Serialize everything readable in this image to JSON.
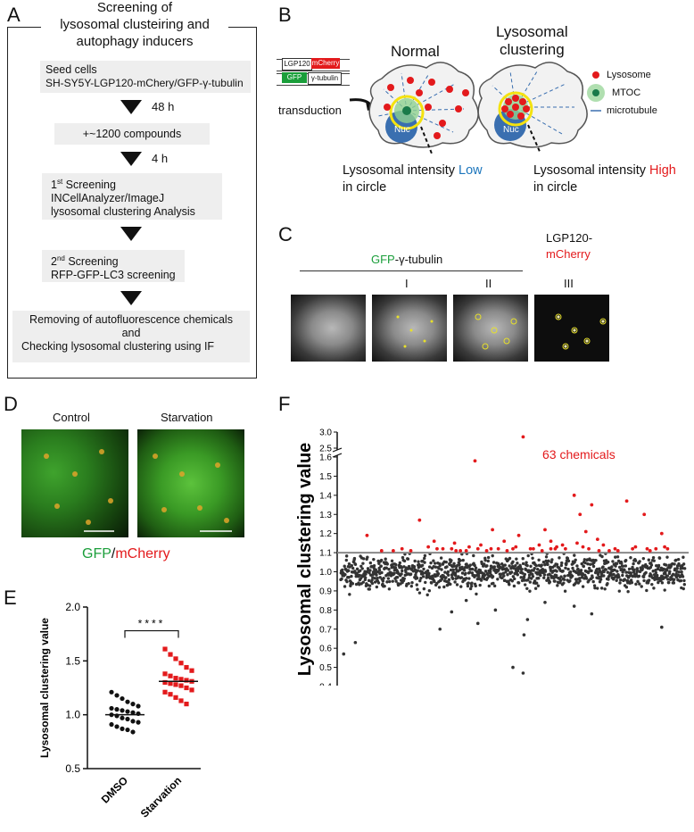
{
  "panels": {
    "a": "A",
    "b": "B",
    "c": "C",
    "d": "D",
    "e": "E",
    "f": "F"
  },
  "panel_a": {
    "title_lines": [
      "Screening of",
      "lysosomal clusteiring  and",
      "autophagy inducers"
    ],
    "step1": [
      "Seed cells",
      "SH-SY5Y-LGP120-mChery/GFP-γ-tubulin"
    ],
    "time1": "48 h",
    "step2": "+~1200 compounds",
    "time2": "4 h",
    "step3": {
      "sup": "st",
      "pre": "1",
      "line1": " Screening",
      "line2": "INCellAnalyzer/ImageJ",
      "line3": "lysosomal clustering Analysis"
    },
    "step4": {
      "pre": "2",
      "sup": "nd",
      "line1": " Screening",
      "line2": "RFP-GFP-LC3 screening"
    },
    "step5": [
      "Removing of autofluorescence chemicals",
      "and",
      "Checking lysosomal clustering  using  IF"
    ]
  },
  "panel_b": {
    "construct1": [
      "LGP120",
      "mCherry"
    ],
    "construct2": [
      "GFP",
      "γ-tubulin"
    ],
    "transduction": "transduction",
    "normal": "Normal",
    "clustering": [
      "Lysosomal",
      "clustering"
    ],
    "nuc": "Nuc",
    "legend": [
      "Lysosome",
      "MTOC",
      "microtubule"
    ],
    "intensity_low": {
      "pre": "Lysosomal intensity ",
      "word": "Low",
      "post": "in circle"
    },
    "intensity_high": {
      "pre": "Lysosomal intensity ",
      "word": "High",
      "post": "in circle"
    },
    "colors": {
      "low": "#1b75bc",
      "high": "#e31a1c",
      "green": "#1a9e3a"
    }
  },
  "panel_c": {
    "header_gfp": "GFP",
    "header_rest": "-γ-tubulin",
    "lgp_line1": "LGP120-",
    "lgp_line2": "mCherry",
    "cols": [
      "I",
      "II",
      "III"
    ]
  },
  "panel_d": {
    "control": "Control",
    "starvation": "Starvation",
    "caption_gfp": "GFP",
    "caption_slash": "/",
    "caption_mch": "mCherry"
  },
  "chart_data": [
    {
      "type": "scatter",
      "panel": "E",
      "ylabel": "Lysosomal clustering value",
      "categories": [
        "DMSO",
        "Starvation"
      ],
      "ylim": [
        0.5,
        2.0
      ],
      "yticks": [
        "0.5",
        "1.0",
        "1.5",
        "2.0"
      ],
      "significance": "****",
      "series": [
        {
          "name": "DMSO",
          "color": "#111111",
          "marker": "circle",
          "mean": 1.0,
          "values": [
            1.21,
            1.18,
            1.15,
            1.12,
            1.1,
            1.08,
            1.06,
            1.05,
            1.04,
            1.03,
            1.02,
            1.01,
            1.0,
            0.99,
            0.97,
            0.96,
            0.94,
            0.93,
            0.91,
            0.89,
            0.87,
            0.86,
            0.84
          ]
        },
        {
          "name": "Starvation",
          "color": "#e31a1c",
          "marker": "square",
          "mean": 1.31,
          "values": [
            1.61,
            1.56,
            1.52,
            1.48,
            1.44,
            1.41,
            1.38,
            1.36,
            1.34,
            1.33,
            1.32,
            1.31,
            1.3,
            1.29,
            1.28,
            1.27,
            1.25,
            1.23,
            1.21,
            1.19,
            1.16,
            1.13,
            1.1
          ]
        }
      ]
    },
    {
      "type": "scatter",
      "panel": "F",
      "ylabel": "Lysosomal clustering value",
      "annotation": "63 chemicals",
      "threshold": 1.1,
      "xticks": [
        "500",
        "1000"
      ],
      "xlim": [
        0,
        1180
      ],
      "yticks_lower": [
        "0.4",
        "0.5",
        "0.6",
        "0.7",
        "0.8",
        "0.9",
        "1.0",
        "1.1",
        "1.2",
        "1.3",
        "1.4",
        "1.5",
        "1.6"
      ],
      "yticks_upper": [
        "2.5",
        "3.0"
      ],
      "ylim_lower": [
        0.4,
        1.6
      ],
      "ylim_upper": [
        2.5,
        3.0
      ],
      "highlight_color": "#e31a1c",
      "base_color": "#333333",
      "hits": [
        [
          90,
          1.19
        ],
        [
          210,
          1.12
        ],
        [
          270,
          1.27
        ],
        [
          300,
          1.13
        ],
        [
          320,
          1.16
        ],
        [
          380,
          1.12
        ],
        [
          390,
          1.15
        ],
        [
          410,
          1.11
        ],
        [
          440,
          1.13
        ],
        [
          460,
          1.58
        ],
        [
          480,
          1.14
        ],
        [
          500,
          1.11
        ],
        [
          520,
          1.22
        ],
        [
          540,
          1.12
        ],
        [
          560,
          1.16
        ],
        [
          600,
          1.13
        ],
        [
          610,
          1.19
        ],
        [
          625,
          2.85
        ],
        [
          650,
          1.12
        ],
        [
          680,
          1.14
        ],
        [
          700,
          1.22
        ],
        [
          720,
          1.16
        ],
        [
          740,
          1.13
        ],
        [
          770,
          1.12
        ],
        [
          800,
          1.4
        ],
        [
          810,
          1.15
        ],
        [
          820,
          1.3
        ],
        [
          840,
          1.21
        ],
        [
          860,
          1.35
        ],
        [
          880,
          1.17
        ],
        [
          920,
          1.11
        ],
        [
          980,
          1.37
        ],
        [
          1010,
          1.13
        ],
        [
          1040,
          1.3
        ],
        [
          1080,
          1.12
        ],
        [
          1100,
          1.2
        ],
        [
          140,
          1.11
        ],
        [
          350,
          1.12
        ],
        [
          430,
          1.11
        ],
        [
          570,
          1.11
        ],
        [
          660,
          1.12
        ],
        [
          690,
          1.11
        ],
        [
          760,
          1.14
        ],
        [
          850,
          1.12
        ],
        [
          900,
          1.14
        ],
        [
          950,
          1.11
        ],
        [
          1000,
          1.12
        ],
        [
          1060,
          1.11
        ],
        [
          1110,
          1.13
        ],
        [
          240,
          1.11
        ],
        [
          330,
          1.12
        ],
        [
          470,
          1.12
        ],
        [
          590,
          1.12
        ],
        [
          720,
          1.12
        ],
        [
          830,
          1.13
        ],
        [
          940,
          1.12
        ],
        [
          1050,
          1.12
        ],
        [
          1120,
          1.12
        ],
        [
          180,
          1.11
        ],
        [
          395,
          1.11
        ],
        [
          515,
          1.12
        ],
        [
          735,
          1.12
        ],
        [
          885,
          1.11
        ]
      ],
      "outliers_low": [
        [
          10,
          0.57
        ],
        [
          50,
          0.63
        ],
        [
          340,
          0.7
        ],
        [
          380,
          0.79
        ],
        [
          470,
          0.73
        ],
        [
          530,
          0.8
        ],
        [
          590,
          0.5
        ],
        [
          625,
          0.47
        ],
        [
          628,
          0.67
        ],
        [
          640,
          0.75
        ],
        [
          800,
          0.82
        ],
        [
          860,
          0.78
        ],
        [
          1100,
          0.71
        ],
        [
          430,
          0.85
        ],
        [
          700,
          0.84
        ]
      ]
    }
  ]
}
